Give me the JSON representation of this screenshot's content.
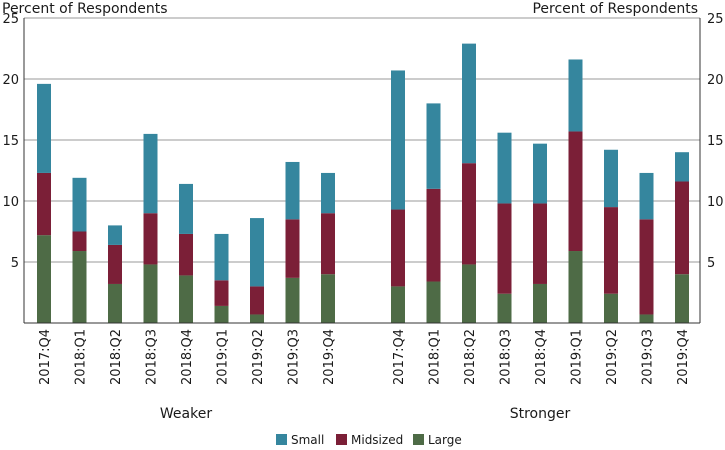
{
  "chart_data": {
    "type": "bar",
    "stacked": true,
    "ylabel_left": "Percent of Respondents",
    "ylabel_right": "Percent of Respondents",
    "ylim": [
      0,
      25
    ],
    "yticks": [
      5,
      10,
      15,
      20,
      25
    ],
    "grid": true,
    "legend_position": "bottom",
    "series": [
      {
        "name": "Small",
        "color": "#35869e"
      },
      {
        "name": "Midsized",
        "color": "#7b1f37"
      },
      {
        "name": "Large",
        "color": "#4e6b46"
      }
    ],
    "groups": [
      {
        "label": "Weaker",
        "categories": [
          "2017:Q4",
          "2018:Q1",
          "2018:Q2",
          "2018:Q3",
          "2018:Q4",
          "2019:Q1",
          "2019:Q2",
          "2019:Q3",
          "2019:Q4"
        ],
        "large": [
          7.2,
          5.9,
          3.2,
          4.8,
          3.9,
          1.4,
          0.7,
          3.7,
          4.0
        ],
        "midsized": [
          5.1,
          1.6,
          3.2,
          4.2,
          3.4,
          2.1,
          2.3,
          4.8,
          5.0
        ],
        "small": [
          7.3,
          4.4,
          1.6,
          6.5,
          4.1,
          3.8,
          5.6,
          4.7,
          3.3
        ]
      },
      {
        "label": "Stronger",
        "categories": [
          "2017:Q4",
          "2018:Q1",
          "2018:Q2",
          "2018:Q3",
          "2018:Q4",
          "2019:Q1",
          "2019:Q2",
          "2019:Q3",
          "2019:Q4"
        ],
        "large": [
          3.0,
          3.4,
          4.8,
          2.4,
          3.2,
          5.9,
          2.4,
          0.7,
          4.0
        ],
        "midsized": [
          6.3,
          7.6,
          8.3,
          7.4,
          6.6,
          9.8,
          7.1,
          7.8,
          7.6
        ],
        "small": [
          11.4,
          7.0,
          9.8,
          5.8,
          4.9,
          5.9,
          4.7,
          3.8,
          2.4
        ]
      }
    ]
  }
}
